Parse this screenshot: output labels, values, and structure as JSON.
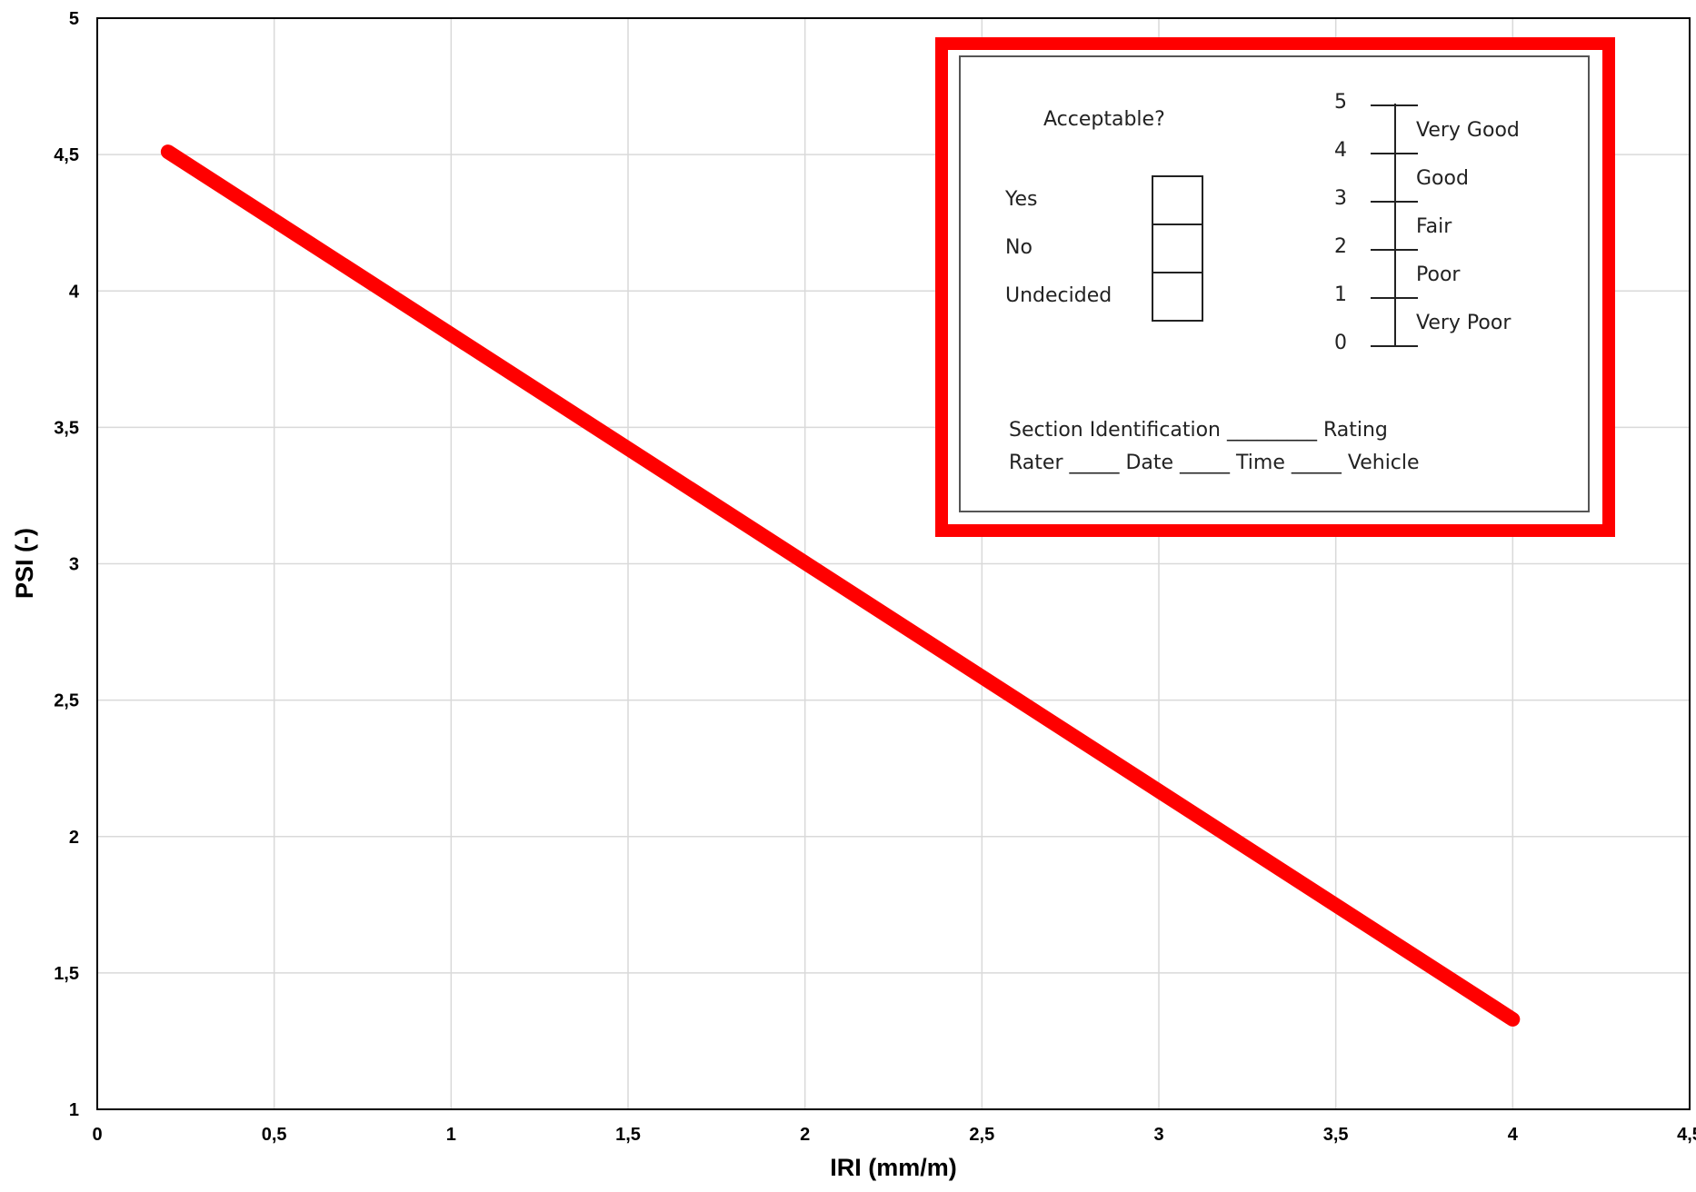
{
  "chart_data": {
    "type": "line",
    "xlabel": "IRI (mm/m)",
    "ylabel": "PSI (-)",
    "xlim": [
      0,
      4.5
    ],
    "ylim": [
      1,
      5
    ],
    "x_ticks": [
      0,
      0.5,
      1,
      1.5,
      2,
      2.5,
      3,
      3.5,
      4,
      4.5
    ],
    "y_ticks": [
      1,
      1.5,
      2,
      2.5,
      3,
      3.5,
      4,
      4.5,
      5
    ],
    "x_tick_labels": [
      "0",
      "0,5",
      "1",
      "1,5",
      "2",
      "2,5",
      "3",
      "3,5",
      "4",
      "4,5"
    ],
    "y_tick_labels": [
      "1",
      "1,5",
      "2",
      "2,5",
      "3",
      "3,5",
      "4",
      "4,5",
      "5"
    ],
    "grid": true,
    "series": [
      {
        "x": [
          0.2,
          4.0
        ],
        "y": [
          4.51,
          1.33
        ],
        "color": "#ff0000"
      }
    ]
  },
  "inset_form": {
    "border_color": "#ff0000",
    "acceptable_label": "Acceptable?",
    "options": [
      "Yes",
      "No",
      "Undecided"
    ],
    "scale_numbers": [
      "5",
      "4",
      "3",
      "2",
      "1",
      "0"
    ],
    "scale_labels": [
      "Very Good",
      "Good",
      "Fair",
      "Poor",
      "Very Poor"
    ],
    "line1": "Section Identification _________  Rating",
    "line2": "Rater _____  Date _____  Time _____  Vehicle"
  }
}
